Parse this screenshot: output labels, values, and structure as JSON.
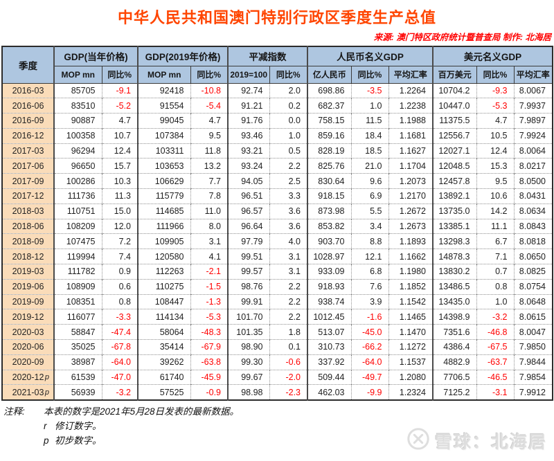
{
  "title": "中华人民共和国澳门特别行政区季度生产总值",
  "source_line": "来源: 澳门特区政府统计暨普查局  制作: 北海居",
  "colors": {
    "title_color": "#FF4500",
    "source_color": "#FF0000",
    "header_bg": "#AEC6E0",
    "quarter_bg": "#FADCB9",
    "negative_color": "#FF0000"
  },
  "chart_data": {
    "type": "table",
    "title": "中华人民共和国澳门特别行政区季度生产总值",
    "corner_header": "季度",
    "groups": [
      {
        "label": "GDP(当年价格)",
        "subcols": [
          "MOP mn",
          "同比%"
        ]
      },
      {
        "label": "GDP(2019年价格)",
        "subcols": [
          "MOP mn",
          "同比%"
        ]
      },
      {
        "label": "平减指数",
        "subcols": [
          "2019=100",
          "同比%"
        ]
      },
      {
        "label": "人民币名义GDP",
        "subcols": [
          "亿人民币",
          "同比%",
          "平均汇率"
        ]
      },
      {
        "label": "美元名义GDP",
        "subcols": [
          "百万美元",
          "同比%",
          "平均汇率"
        ]
      }
    ],
    "rows": [
      {
        "quarter": "2016-03",
        "flag": "",
        "values": [
          "85705",
          "-9.1",
          "92418",
          "-10.8",
          "92.74",
          "2.0",
          "698.86",
          "-3.5",
          "1.2264",
          "10704.2",
          "-9.3",
          "8.0067"
        ]
      },
      {
        "quarter": "2016-06",
        "flag": "",
        "values": [
          "83510",
          "-5.2",
          "91554",
          "-5.4",
          "91.21",
          "0.2",
          "682.37",
          "1.0",
          "1.2238",
          "10447.0",
          "-5.3",
          "7.9937"
        ]
      },
      {
        "quarter": "2016-09",
        "flag": "",
        "values": [
          "90887",
          "4.7",
          "99045",
          "4.7",
          "91.76",
          "0.0",
          "758.15",
          "11.5",
          "1.1988",
          "11375.5",
          "4.7",
          "7.9897"
        ]
      },
      {
        "quarter": "2016-12",
        "flag": "",
        "values": [
          "100358",
          "10.7",
          "107384",
          "9.5",
          "93.46",
          "1.0",
          "859.16",
          "18.4",
          "1.1681",
          "12556.7",
          "10.5",
          "7.9924"
        ]
      },
      {
        "quarter": "2017-03",
        "flag": "",
        "values": [
          "96294",
          "12.4",
          "103311",
          "11.8",
          "93.21",
          "0.5",
          "828.19",
          "18.5",
          "1.1627",
          "12027.1",
          "12.4",
          "8.0064"
        ]
      },
      {
        "quarter": "2017-06",
        "flag": "",
        "values": [
          "96650",
          "15.7",
          "103653",
          "13.2",
          "93.24",
          "2.2",
          "825.76",
          "21.0",
          "1.1704",
          "12048.5",
          "15.3",
          "8.0217"
        ]
      },
      {
        "quarter": "2017-09",
        "flag": "",
        "values": [
          "100286",
          "10.3",
          "106629",
          "7.7",
          "94.05",
          "2.5",
          "830.64",
          "9.6",
          "1.2073",
          "12457.8",
          "9.5",
          "8.0500"
        ]
      },
      {
        "quarter": "2017-12",
        "flag": "",
        "values": [
          "111736",
          "11.3",
          "115779",
          "7.8",
          "96.51",
          "3.3",
          "918.15",
          "6.9",
          "1.2170",
          "13892.1",
          "10.6",
          "8.0431"
        ]
      },
      {
        "quarter": "2018-03",
        "flag": "",
        "values": [
          "110751",
          "15.0",
          "114685",
          "11.0",
          "96.57",
          "3.6",
          "873.98",
          "5.5",
          "1.2672",
          "13735.0",
          "14.2",
          "8.0634"
        ]
      },
      {
        "quarter": "2018-06",
        "flag": "",
        "values": [
          "108209",
          "12.0",
          "111966",
          "8.0",
          "96.64",
          "3.6",
          "853.82",
          "3.4",
          "1.2673",
          "13385.1",
          "11.1",
          "8.0843"
        ]
      },
      {
        "quarter": "2018-09",
        "flag": "",
        "values": [
          "107475",
          "7.2",
          "109905",
          "3.1",
          "97.79",
          "4.0",
          "903.70",
          "8.8",
          "1.1893",
          "13298.3",
          "6.7",
          "8.0818"
        ]
      },
      {
        "quarter": "2018-12",
        "flag": "",
        "values": [
          "119994",
          "7.4",
          "120580",
          "4.1",
          "99.51",
          "3.1",
          "1028.97",
          "12.1",
          "1.1662",
          "14878.3",
          "7.1",
          "8.0650"
        ]
      },
      {
        "quarter": "2019-03",
        "flag": "",
        "values": [
          "111782",
          "0.9",
          "112263",
          "-2.1",
          "99.57",
          "3.1",
          "933.09",
          "6.8",
          "1.1980",
          "13830.2",
          "0.7",
          "8.0825"
        ]
      },
      {
        "quarter": "2019-06",
        "flag": "",
        "values": [
          "108909",
          "0.6",
          "110275",
          "-1.5",
          "98.76",
          "2.2",
          "918.93",
          "7.6",
          "1.1852",
          "13486.5",
          "0.8",
          "8.0754"
        ]
      },
      {
        "quarter": "2019-09",
        "flag": "",
        "values": [
          "108351",
          "0.8",
          "108447",
          "-1.3",
          "99.91",
          "2.2",
          "938.74",
          "3.9",
          "1.1542",
          "13435.0",
          "1.0",
          "8.0648"
        ]
      },
      {
        "quarter": "2019-12",
        "flag": "",
        "values": [
          "116077",
          "-3.3",
          "114134",
          "-5.3",
          "101.70",
          "2.2",
          "1012.45",
          "-1.6",
          "1.1465",
          "14398.9",
          "-3.2",
          "8.0615"
        ]
      },
      {
        "quarter": "2020-03",
        "flag": "",
        "values": [
          "58847",
          "-47.4",
          "58064",
          "-48.3",
          "101.35",
          "1.8",
          "513.07",
          "-45.0",
          "1.1470",
          "7351.6",
          "-46.8",
          "8.0047"
        ]
      },
      {
        "quarter": "2020-06",
        "flag": "",
        "values": [
          "35025",
          "-67.8",
          "35414",
          "-67.9",
          "98.90",
          "0.1",
          "310.73",
          "-66.2",
          "1.1272",
          "4386.4",
          "-67.5",
          "7.9850"
        ]
      },
      {
        "quarter": "2020-09",
        "flag": "",
        "values": [
          "38987",
          "-64.0",
          "39262",
          "-63.8",
          "99.30",
          "-0.6",
          "337.92",
          "-64.0",
          "1.1537",
          "4882.9",
          "-63.7",
          "7.9844"
        ]
      },
      {
        "quarter": "2020-12",
        "flag": "p",
        "values": [
          "61539",
          "-47.0",
          "61740",
          "-45.9",
          "99.67",
          "-2.0",
          "509.44",
          "-49.7",
          "1.2080",
          "7706.5",
          "-46.5",
          "7.9854"
        ]
      },
      {
        "quarter": "2021-03",
        "flag": "p",
        "values": [
          "56939",
          "-3.2",
          "57525",
          "-0.9",
          "98.98",
          "-2.3",
          "462.03",
          "-9.9",
          "1.2324",
          "7125.2",
          "-3.1",
          "7.9912"
        ]
      }
    ]
  },
  "notes": {
    "label": "注释:",
    "line1": "本表的数字是2021年5月28日发表的最新数据。",
    "items": [
      {
        "flag": "r",
        "text": "修订数字。"
      },
      {
        "flag": "p",
        "text": "初步数字。"
      }
    ]
  },
  "watermark": {
    "text": "雪球：北海居"
  }
}
